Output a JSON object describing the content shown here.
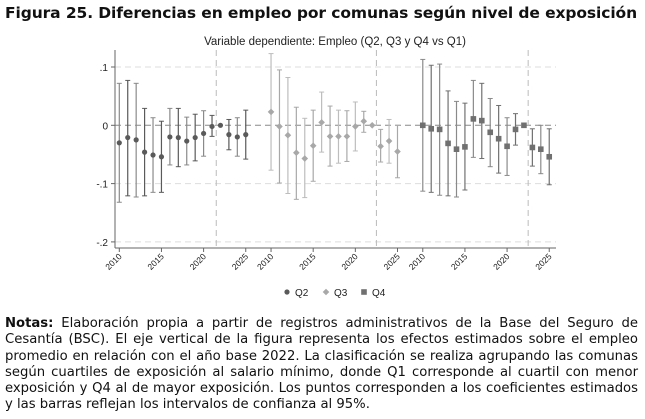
{
  "title": "Figura 25.  Diferencias en empleo por comunas según nivel de exposición",
  "notes": {
    "label": "Notas:",
    "text": " Elaboración propia a partir de registros administrativos de la Base del Seguro de Cesantía (BSC). El eje vertical de la figura representa los efectos estimados sobre el empleo promedio en relación con el año base 2022. La clasificación se realiza agrupando las comunas según cuartiles de exposición al salario mínimo, donde Q1 corresponde al cuartil con menor exposición y Q4 al de mayor exposición. Los puntos corresponden a los coeficientes estimados y las barras reflejan los intervalos de confianza al 95%."
  },
  "chart_data": {
    "type": "scatter",
    "subtitle": "Variable dependiente: Empleo (Q2, Q3 y Q4 vs Q1)",
    "ylim": [
      -0.2,
      0.13
    ],
    "yticks": [
      ".1",
      "0",
      "-.1",
      "-.2"
    ],
    "ytick_values": [
      0.1,
      0,
      -0.1,
      -0.2
    ],
    "xtick_labels": [
      "2010",
      "2015",
      "2020",
      "2025"
    ],
    "grid": "horizontal dashed",
    "legend_placement": "bottom",
    "years": [
      2010,
      2011,
      2012,
      2013,
      2014,
      2015,
      2016,
      2017,
      2018,
      2019,
      2020,
      2021,
      2022,
      2023,
      2024,
      2025
    ],
    "series": [
      {
        "name": "Q2",
        "marker": "circle",
        "color": "#5a5a5a",
        "values": [
          -0.03,
          -0.021,
          -0.025,
          -0.046,
          -0.051,
          -0.054,
          -0.02,
          -0.021,
          -0.027,
          -0.021,
          -0.014,
          -0.002,
          0,
          -0.016,
          -0.02,
          -0.016
        ],
        "ci_upper": [
          0.072,
          0.077,
          0.072,
          0.029,
          0.013,
          0.007,
          0.029,
          0.029,
          0.014,
          0.019,
          0.025,
          0.017,
          0,
          0.01,
          0.013,
          0.026
        ],
        "ci_lower": [
          -0.132,
          -0.121,
          -0.123,
          -0.121,
          -0.115,
          -0.115,
          -0.068,
          -0.071,
          -0.068,
          -0.061,
          -0.053,
          -0.019,
          0,
          -0.042,
          -0.053,
          -0.058
        ]
      },
      {
        "name": "Q3",
        "marker": "diamond",
        "color": "#a8a8a8",
        "values": [
          0.023,
          -0.002,
          -0.017,
          -0.047,
          -0.057,
          -0.035,
          0.005,
          -0.019,
          -0.019,
          -0.019,
          -0.002,
          0.007,
          0,
          -0.036,
          -0.027,
          -0.045
        ],
        "ci_upper": [
          0.123,
          0.095,
          0.082,
          0.031,
          0.012,
          0.026,
          0.057,
          0.033,
          0.026,
          0.025,
          0.04,
          0.024,
          0,
          -0.007,
          0.01,
          0.0
        ],
        "ci_lower": [
          -0.077,
          -0.099,
          -0.117,
          -0.127,
          -0.124,
          -0.096,
          -0.046,
          -0.07,
          -0.065,
          -0.062,
          -0.044,
          -0.012,
          0,
          -0.063,
          -0.065,
          -0.09
        ]
      },
      {
        "name": "Q4",
        "marker": "square",
        "color": "#707070",
        "values": [
          0,
          -0.006,
          -0.007,
          -0.031,
          -0.041,
          -0.037,
          0.011,
          0.008,
          -0.012,
          -0.023,
          -0.036,
          -0.007,
          0,
          -0.038,
          -0.041,
          -0.054
        ],
        "ci_upper": [
          0.113,
          0.103,
          0.105,
          0.059,
          0.041,
          0.038,
          0.077,
          0.072,
          0.046,
          0.034,
          0.013,
          0.02,
          0,
          -0.006,
          0,
          -0.006
        ],
        "ci_lower": [
          -0.113,
          -0.115,
          -0.12,
          -0.121,
          -0.123,
          -0.111,
          -0.055,
          -0.057,
          -0.071,
          -0.082,
          -0.086,
          -0.034,
          0,
          -0.07,
          -0.083,
          -0.102
        ]
      }
    ]
  }
}
